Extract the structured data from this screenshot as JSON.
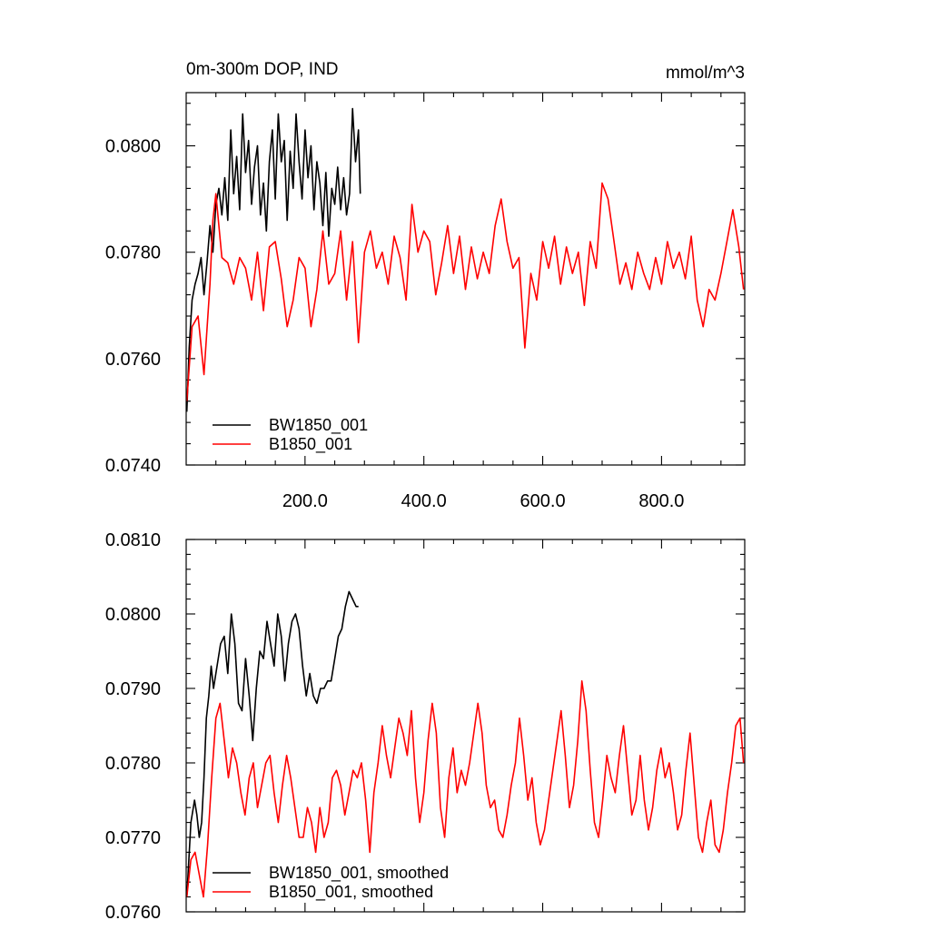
{
  "chart_data": [
    {
      "type": "line",
      "title": "0m-300m DOP, IND",
      "units": "mmol/m^3",
      "xlim": [
        0,
        940
      ],
      "ylim": [
        0.074,
        0.081
      ],
      "x_ticks": [
        "200.0",
        "400.0",
        "600.0",
        "800.0"
      ],
      "y_ticks": [
        "0.0740",
        "0.0760",
        "0.0780",
        "0.0800"
      ],
      "grid": false,
      "legend_position": "bottom-left",
      "series": [
        {
          "name": "BW1850_001",
          "color": "#000000",
          "x": [
            1,
            5,
            10,
            15,
            20,
            25,
            30,
            35,
            40,
            45,
            50,
            55,
            60,
            65,
            70,
            75,
            80,
            85,
            90,
            95,
            100,
            105,
            110,
            115,
            120,
            125,
            130,
            135,
            140,
            145,
            150,
            155,
            160,
            165,
            170,
            175,
            180,
            185,
            190,
            195,
            200,
            205,
            210,
            215,
            220,
            225,
            230,
            235,
            240,
            245,
            250,
            255,
            260,
            265,
            270,
            275,
            280,
            285,
            290,
            293
          ],
          "values": [
            0.075,
            0.0762,
            0.0771,
            0.0774,
            0.0776,
            0.0779,
            0.0772,
            0.0778,
            0.0785,
            0.078,
            0.0789,
            0.0792,
            0.0787,
            0.0794,
            0.0786,
            0.0803,
            0.0791,
            0.0798,
            0.0788,
            0.0806,
            0.0795,
            0.0801,
            0.0789,
            0.0796,
            0.08,
            0.0787,
            0.0793,
            0.0784,
            0.0797,
            0.0803,
            0.079,
            0.0806,
            0.0797,
            0.0801,
            0.0786,
            0.0799,
            0.0792,
            0.0806,
            0.0797,
            0.079,
            0.0803,
            0.0794,
            0.08,
            0.0788,
            0.0797,
            0.0793,
            0.0785,
            0.0795,
            0.0783,
            0.0792,
            0.0789,
            0.0796,
            0.0788,
            0.0794,
            0.0787,
            0.0791,
            0.0807,
            0.0797,
            0.0803,
            0.0791
          ]
        },
        {
          "name": "B1850_001",
          "color": "#ff0000",
          "x": [
            1,
            10,
            20,
            30,
            40,
            45,
            50,
            60,
            70,
            80,
            90,
            100,
            110,
            120,
            130,
            140,
            150,
            160,
            170,
            180,
            190,
            200,
            210,
            220,
            230,
            240,
            250,
            260,
            270,
            280,
            290,
            300,
            310,
            320,
            330,
            340,
            350,
            360,
            370,
            380,
            390,
            400,
            410,
            420,
            430,
            440,
            450,
            460,
            470,
            480,
            490,
            500,
            510,
            520,
            530,
            540,
            550,
            560,
            570,
            580,
            590,
            600,
            610,
            620,
            630,
            640,
            650,
            660,
            670,
            680,
            690,
            700,
            710,
            720,
            730,
            740,
            750,
            760,
            770,
            780,
            790,
            800,
            810,
            820,
            830,
            840,
            850,
            860,
            870,
            880,
            890,
            900,
            910,
            920,
            930,
            938
          ],
          "values": [
            0.0752,
            0.0766,
            0.0768,
            0.0757,
            0.0774,
            0.0786,
            0.0791,
            0.0779,
            0.0778,
            0.0774,
            0.0779,
            0.0777,
            0.0771,
            0.078,
            0.0769,
            0.0781,
            0.0782,
            0.0775,
            0.0766,
            0.0771,
            0.0779,
            0.0777,
            0.0766,
            0.0773,
            0.0784,
            0.0774,
            0.0776,
            0.0784,
            0.0771,
            0.0782,
            0.0763,
            0.078,
            0.0784,
            0.0777,
            0.078,
            0.0774,
            0.0783,
            0.0779,
            0.0771,
            0.0789,
            0.078,
            0.0784,
            0.0782,
            0.0772,
            0.0778,
            0.0785,
            0.0776,
            0.0783,
            0.0773,
            0.0781,
            0.0775,
            0.078,
            0.0776,
            0.0785,
            0.079,
            0.0782,
            0.0777,
            0.0779,
            0.0762,
            0.0776,
            0.0771,
            0.0782,
            0.0777,
            0.0783,
            0.0774,
            0.0781,
            0.0776,
            0.078,
            0.077,
            0.0782,
            0.0777,
            0.0793,
            0.079,
            0.0782,
            0.0774,
            0.0778,
            0.0773,
            0.078,
            0.0776,
            0.0773,
            0.0779,
            0.0774,
            0.0782,
            0.0777,
            0.078,
            0.0775,
            0.0783,
            0.0771,
            0.0766,
            0.0773,
            0.0771,
            0.0776,
            0.0782,
            0.0788,
            0.0781,
            0.0773
          ]
        }
      ]
    },
    {
      "type": "line",
      "title": "",
      "units": "",
      "xlim": [
        0,
        940
      ],
      "ylim": [
        0.076,
        0.081
      ],
      "y_ticks": [
        "0.0760",
        "0.0770",
        "0.0780",
        "0.0790",
        "0.0800",
        "0.0810"
      ],
      "grid": false,
      "legend_position": "bottom-left",
      "series": [
        {
          "name": "BW1850_001, smoothed",
          "color": "#000000",
          "x": [
            1,
            8,
            14,
            18,
            22,
            26,
            30,
            34,
            38,
            42,
            46,
            52,
            58,
            64,
            70,
            76,
            82,
            88,
            94,
            100,
            106,
            112,
            118,
            124,
            130,
            136,
            142,
            148,
            154,
            160,
            166,
            172,
            178,
            184,
            190,
            196,
            202,
            208,
            214,
            220,
            226,
            232,
            238,
            244,
            250,
            256,
            262,
            268,
            274,
            280,
            286,
            290
          ],
          "values": [
            0.0762,
            0.0772,
            0.0775,
            0.0773,
            0.077,
            0.0772,
            0.0778,
            0.0786,
            0.0789,
            0.0793,
            0.079,
            0.0793,
            0.0796,
            0.0797,
            0.0792,
            0.08,
            0.0796,
            0.0788,
            0.0787,
            0.0794,
            0.0789,
            0.0783,
            0.079,
            0.0795,
            0.0794,
            0.0799,
            0.0796,
            0.0793,
            0.08,
            0.0797,
            0.0791,
            0.0796,
            0.0799,
            0.08,
            0.0798,
            0.0793,
            0.0789,
            0.0792,
            0.0789,
            0.0788,
            0.079,
            0.079,
            0.0791,
            0.0791,
            0.0794,
            0.0797,
            0.0798,
            0.0801,
            0.0803,
            0.0802,
            0.0801,
            0.0801
          ]
        },
        {
          "name": "B1850_001, smoothed",
          "color": "#ff0000",
          "x": [
            1,
            8,
            15,
            22,
            29,
            36,
            43,
            50,
            57,
            64,
            71,
            78,
            85,
            92,
            99,
            106,
            113,
            120,
            127,
            134,
            141,
            148,
            155,
            162,
            169,
            176,
            183,
            190,
            197,
            204,
            211,
            218,
            225,
            232,
            239,
            246,
            253,
            260,
            267,
            274,
            281,
            288,
            295,
            302,
            309,
            316,
            323,
            330,
            337,
            344,
            351,
            358,
            365,
            372,
            379,
            386,
            393,
            400,
            407,
            414,
            421,
            428,
            435,
            442,
            449,
            456,
            463,
            470,
            477,
            484,
            491,
            498,
            505,
            512,
            519,
            526,
            533,
            540,
            547,
            554,
            561,
            568,
            575,
            582,
            589,
            596,
            603,
            610,
            617,
            624,
            631,
            638,
            645,
            652,
            659,
            666,
            673,
            680,
            687,
            694,
            701,
            708,
            715,
            722,
            729,
            736,
            743,
            750,
            757,
            764,
            771,
            778,
            785,
            792,
            799,
            806,
            813,
            820,
            827,
            834,
            841,
            848,
            855,
            862,
            869,
            876,
            883,
            890,
            897,
            904,
            911,
            918,
            925,
            932,
            938
          ],
          "values": [
            0.0762,
            0.0767,
            0.0768,
            0.0765,
            0.0762,
            0.0769,
            0.0778,
            0.0786,
            0.0788,
            0.0783,
            0.0778,
            0.0782,
            0.078,
            0.0776,
            0.0773,
            0.0778,
            0.078,
            0.0774,
            0.0777,
            0.078,
            0.0781,
            0.0776,
            0.0772,
            0.0777,
            0.0781,
            0.0778,
            0.0774,
            0.077,
            0.077,
            0.0774,
            0.0772,
            0.0768,
            0.0774,
            0.077,
            0.0772,
            0.0778,
            0.0779,
            0.0777,
            0.0773,
            0.0776,
            0.0779,
            0.0778,
            0.078,
            0.0775,
            0.0768,
            0.0776,
            0.078,
            0.0785,
            0.0781,
            0.0778,
            0.0782,
            0.0786,
            0.0784,
            0.0781,
            0.0787,
            0.0778,
            0.0772,
            0.0776,
            0.0783,
            0.0788,
            0.0784,
            0.0774,
            0.077,
            0.0778,
            0.0782,
            0.0776,
            0.0779,
            0.0777,
            0.078,
            0.0784,
            0.0788,
            0.0784,
            0.0777,
            0.0774,
            0.0775,
            0.0771,
            0.077,
            0.0773,
            0.0777,
            0.078,
            0.0786,
            0.0781,
            0.0775,
            0.0778,
            0.0772,
            0.0769,
            0.0771,
            0.0775,
            0.0779,
            0.0783,
            0.0787,
            0.0781,
            0.0774,
            0.0777,
            0.0783,
            0.0791,
            0.0787,
            0.0779,
            0.0772,
            0.077,
            0.0775,
            0.0781,
            0.0778,
            0.0776,
            0.0781,
            0.0785,
            0.0779,
            0.0773,
            0.0775,
            0.0781,
            0.0775,
            0.0771,
            0.0774,
            0.0779,
            0.0782,
            0.0778,
            0.078,
            0.0776,
            0.0771,
            0.0773,
            0.0779,
            0.0784,
            0.0777,
            0.077,
            0.0768,
            0.0772,
            0.0775,
            0.0769,
            0.0768,
            0.0771,
            0.0776,
            0.078,
            0.0785,
            0.0786,
            0.078
          ]
        }
      ]
    }
  ]
}
